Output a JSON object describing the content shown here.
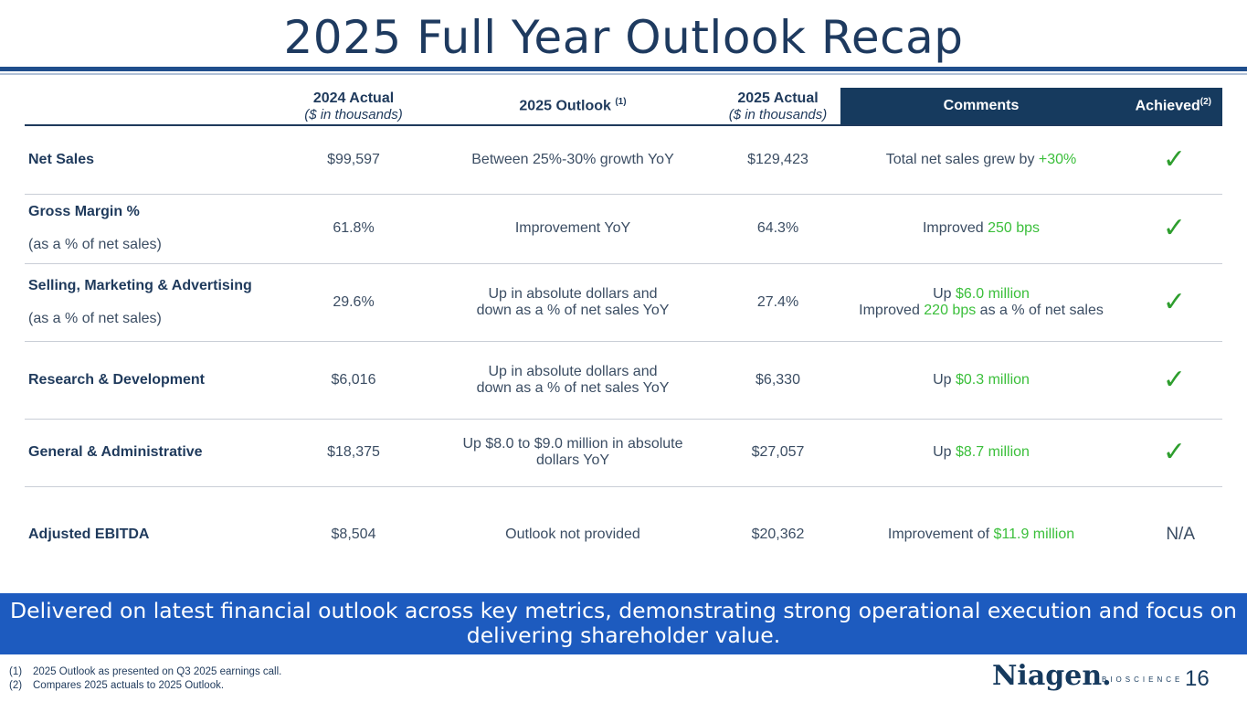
{
  "title": "2025 Full Year Outlook Recap",
  "table": {
    "headers": {
      "actual_2024": "2024 Actual",
      "actual_2024_sub": "($ in thousands)",
      "outlook_2025": "2025 Outlook",
      "outlook_2025_sup": "(1)",
      "actual_2025": "2025 Actual",
      "actual_2025_sub": "($ in thousands)",
      "comments": "Comments",
      "achieved": "Achieved",
      "achieved_sup": "(2)"
    },
    "rows": [
      {
        "metric": "Net Sales",
        "metric_sub": "",
        "actual_2024": "$99,597",
        "outlook_line1": "Between 25%-30% growth YoY",
        "outlook_line2": "",
        "actual_2025": "$129,423",
        "comment_line1_pre": "Total net sales grew by ",
        "comment_line1_hl": "+30%",
        "comment_line1_post": "",
        "comment_line2_pre": "",
        "comment_line2_hl": "",
        "comment_line2_post": "",
        "achieved": "✓"
      },
      {
        "metric": "Gross Margin %",
        "metric_sub": "(as a % of net sales)",
        "actual_2024": "61.8%",
        "outlook_line1": "Improvement YoY",
        "outlook_line2": "",
        "actual_2025": "64.3%",
        "comment_line1_pre": "Improved ",
        "comment_line1_hl": "250 bps",
        "comment_line1_post": "",
        "comment_line2_pre": "",
        "comment_line2_hl": "",
        "comment_line2_post": "",
        "achieved": "✓"
      },
      {
        "metric": "Selling, Marketing & Advertising",
        "metric_sub": "(as a % of net sales)",
        "actual_2024": "29.6%",
        "outlook_line1": "Up in absolute dollars and",
        "outlook_line2": "down as a % of net sales YoY",
        "actual_2025": "27.4%",
        "comment_line1_pre": "Up ",
        "comment_line1_hl": "$6.0 million",
        "comment_line1_post": "",
        "comment_line2_pre": "Improved ",
        "comment_line2_hl": "220 bps",
        "comment_line2_post": " as a % of net sales",
        "achieved": "✓"
      },
      {
        "metric": "Research & Development",
        "metric_sub": "",
        "actual_2024": "$6,016",
        "outlook_line1": "Up in absolute dollars and",
        "outlook_line2": "down as a % of net sales YoY",
        "actual_2025": "$6,330",
        "comment_line1_pre": "Up ",
        "comment_line1_hl": "$0.3 million",
        "comment_line1_post": "",
        "comment_line2_pre": "",
        "comment_line2_hl": "",
        "comment_line2_post": "",
        "achieved": "✓"
      },
      {
        "metric": "General & Administrative",
        "metric_sub": "",
        "actual_2024": "$18,375",
        "outlook_line1": "Up $8.0 to $9.0 million in absolute",
        "outlook_line2": "dollars YoY",
        "actual_2025": "$27,057",
        "comment_line1_pre": "Up ",
        "comment_line1_hl": "$8.7 million",
        "comment_line1_post": "",
        "comment_line2_pre": "",
        "comment_line2_hl": "",
        "comment_line2_post": "",
        "achieved": "✓"
      },
      {
        "metric": "Adjusted EBITDA",
        "metric_sub": "",
        "actual_2024": "$8,504",
        "outlook_line1": "Outlook not provided",
        "outlook_line2": "",
        "actual_2025": "$20,362",
        "comment_line1_pre": "Improvement of ",
        "comment_line1_hl": "$11.9 million",
        "comment_line1_post": "",
        "comment_line2_pre": "",
        "comment_line2_hl": "",
        "comment_line2_post": "",
        "achieved": "N/A"
      }
    ]
  },
  "banner": "Delivered on latest financial outlook across key metrics, demonstrating strong operational execution and focus on delivering shareholder value.",
  "footnotes": [
    {
      "num": "(1)",
      "text": "2025 Outlook as presented on Q3 2025 earnings call."
    },
    {
      "num": "(2)",
      "text": "Compares 2025 actuals to 2025 Outlook."
    }
  ],
  "logo": {
    "name": "Niagen.",
    "sub": "BIOSCIENCE"
  },
  "page_number": "16",
  "colors": {
    "highlight": "#3bbf3b",
    "navy": "#163a5e",
    "banner": "#1d5bbf",
    "check": "#2e9e2e"
  },
  "icons": {
    "achieved": "checkmark-icon"
  }
}
